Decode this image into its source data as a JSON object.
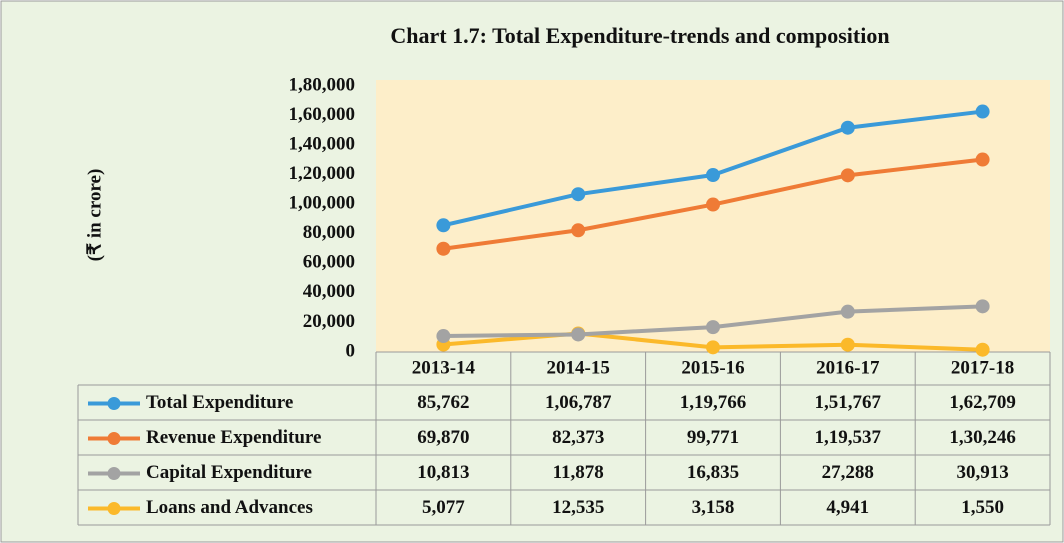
{
  "chart_data": {
    "type": "line",
    "title": "Chart 1.7: Total Expenditure-trends and composition",
    "y_label": "(₹ in crore)",
    "categories": [
      "2013-14",
      "2014-15",
      "2015-16",
      "2016-17",
      "2017-18"
    ],
    "ylim": [
      0,
      180000
    ],
    "yticks": [
      0,
      {
        "value": 20000,
        "label": "20,000"
      },
      {
        "value": 40000,
        "label": "40,000"
      },
      {
        "value": 60000,
        "label": "60,000"
      },
      {
        "value": 80000,
        "label": "80,000"
      },
      {
        "value": 100000,
        "label": "1,00,000"
      },
      {
        "value": 120000,
        "label": "1,20,000"
      },
      {
        "value": 140000,
        "label": "1,40,000"
      },
      {
        "value": 160000,
        "label": "1,60,000"
      },
      {
        "value": 180000,
        "label": "1,80,000"
      }
    ],
    "grid": false,
    "series": [
      {
        "name": "Total Expenditure",
        "color": "#3a9ad9",
        "values": [
          85762,
          106787,
          119766,
          151767,
          162709
        ],
        "value_labels": [
          "85,762",
          "1,06,787",
          "1,19,766",
          "1,51,767",
          "1,62,709"
        ]
      },
      {
        "name": "Revenue Expenditure",
        "color": "#ef7b36",
        "values": [
          69870,
          82373,
          99771,
          119537,
          130246
        ],
        "value_labels": [
          "69,870",
          "82,373",
          "99,771",
          "1,19,537",
          "1,30,246"
        ]
      },
      {
        "name": "Capital Expenditure",
        "color": "#a3a3a3",
        "values": [
          10813,
          11878,
          16835,
          27288,
          30913
        ],
        "value_labels": [
          "10,813",
          "11,878",
          "16,835",
          "27,288",
          "30,913"
        ]
      },
      {
        "name": "Loans and Advances",
        "color": "#fbb92a",
        "values": [
          5077,
          12535,
          3158,
          4941,
          1550
        ],
        "value_labels": [
          "5,077",
          "12,535",
          "3,158",
          "4,941",
          "1,550"
        ]
      }
    ]
  }
}
